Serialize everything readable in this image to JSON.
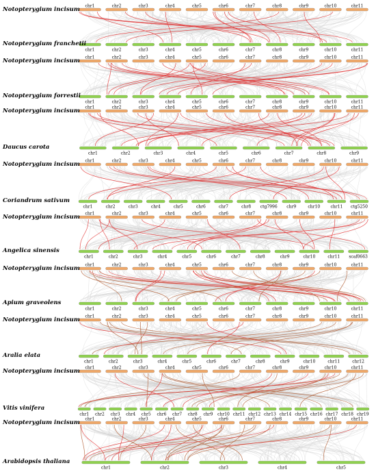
{
  "colors": {
    "incisum_bar": "#f0a868",
    "partner_bar": "#8fd14f",
    "bar_stroke": "#7a7a7a",
    "background_link": "#d4d4d4",
    "highlight_link": "#e23a3a",
    "highlight_link_alt": "#b5643c"
  },
  "panels": [
    {
      "top_species": "Notopterygium incisum",
      "top_chrs": [
        "chr1",
        "chr2",
        "chr3",
        "chr4",
        "chr5",
        "chr6",
        "chr7",
        "chr8",
        "chr9",
        "chr10",
        "chr11"
      ],
      "bottom_species": "Notopterygium franchetii",
      "bottom_chrs": [
        "chr1",
        "chr2",
        "chr3",
        "chr4",
        "chr5",
        "chr6",
        "chr7",
        "chr8",
        "chr9",
        "chr10",
        "chr11"
      ]
    },
    {
      "top_species": "Notopterygium incisum",
      "top_chrs": [
        "chr1",
        "chr2",
        "chr3",
        "chr4",
        "chr5",
        "chr6",
        "chr7",
        "chr8",
        "chr9",
        "chr10",
        "chr11"
      ],
      "bottom_species": "Notopterygium forrestii",
      "bottom_chrs": [
        "chr1",
        "chr2",
        "chr3",
        "chr4",
        "chr5",
        "chr6",
        "chr7",
        "chr8",
        "chr9",
        "chr10",
        "chr11"
      ]
    },
    {
      "top_species": "Notopterygium incisum",
      "top_chrs": [
        "chr1",
        "chr2",
        "chr3",
        "chr4",
        "chr5",
        "chr6",
        "chr7",
        "chr8",
        "chr9",
        "chr10",
        "chr11"
      ],
      "bottom_species": "Daucus carota",
      "bottom_chrs": [
        "chr1",
        "chr2",
        "chr3",
        "chr4",
        "chr5",
        "chr6",
        "chr7",
        "chr8",
        "chr9"
      ]
    },
    {
      "top_species": "Notopterygium incisum",
      "top_chrs": [
        "chr1",
        "chr2",
        "chr3",
        "chr4",
        "chr5",
        "chr6",
        "chr7",
        "chr8",
        "chr9",
        "chr10",
        "chr11"
      ],
      "bottom_species": "Coriandrum sativum",
      "bottom_chrs": [
        "chr1",
        "chr2",
        "chr3",
        "chr4",
        "chr5",
        "chr6",
        "chr7",
        "chr8",
        "ctg7996",
        "chr9",
        "chr10",
        "chr11",
        "ctg5250"
      ]
    },
    {
      "top_species": "Notopterygium incisum",
      "top_chrs": [
        "chr1",
        "chr2",
        "chr3",
        "chr4",
        "chr5",
        "chr6",
        "chr7",
        "chr8",
        "chr9",
        "chr10",
        "chr11"
      ],
      "bottom_species": "Angelica sinensis",
      "bottom_chrs": [
        "chr1",
        "chr2",
        "chr3",
        "chr4",
        "chr5",
        "chr6",
        "chr7",
        "chr8",
        "chr9",
        "chr10",
        "chr11",
        "scaf0663"
      ]
    },
    {
      "top_species": "Notopterygium incisum",
      "top_chrs": [
        "chr1",
        "chr2",
        "chr3",
        "chr4",
        "chr5",
        "chr6",
        "chr7",
        "chr8",
        "chr9",
        "chr10",
        "chr11"
      ],
      "bottom_species": "Apium graveolens",
      "bottom_chrs": [
        "chr1",
        "chr2",
        "chr3",
        "chr4",
        "chr5",
        "chr6",
        "chr7",
        "chr8",
        "chr9",
        "chr10",
        "chr11"
      ]
    },
    {
      "top_species": "Notopterygium incisum",
      "top_chrs": [
        "chr1",
        "chr2",
        "chr3",
        "chr4",
        "chr5",
        "chr6",
        "chr7",
        "chr8",
        "chr9",
        "chr10",
        "chr11"
      ],
      "bottom_species": "Aralia elata",
      "bottom_chrs": [
        "chr1",
        "chr2",
        "chr3",
        "chr4",
        "chr5",
        "chr6",
        "chr7",
        "chr8",
        "chr9",
        "chr10",
        "chr11",
        "chr12"
      ]
    },
    {
      "top_species": "Notopterygium incisum",
      "top_chrs": [
        "chr1",
        "chr2",
        "chr3",
        "chr4",
        "chr5",
        "chr6",
        "chr7",
        "chr8",
        "chr9",
        "chr10",
        "chr11"
      ],
      "bottom_species": "Vitis vinifera",
      "bottom_chrs": [
        "chr1",
        "chr2",
        "chr3",
        "chr4",
        "chr5",
        "chr6",
        "chr7",
        "chr8",
        "chr9",
        "chr10",
        "chr11",
        "chr12",
        "chr13",
        "chr14",
        "chr15",
        "chr16",
        "chr17",
        "chr18",
        "chr19"
      ]
    },
    {
      "top_species": "Notopterygium incisum",
      "top_chrs": [
        "chr1",
        "chr2",
        "chr3",
        "chr4",
        "chr5",
        "chr6",
        "chr7",
        "chr8",
        "chr9",
        "chr10",
        "chr11"
      ],
      "bottom_species": "Arabidopsis thaliana",
      "bottom_chrs": [
        "chr1",
        "chr2",
        "chr3",
        "chr4",
        "chr5"
      ]
    }
  ]
}
